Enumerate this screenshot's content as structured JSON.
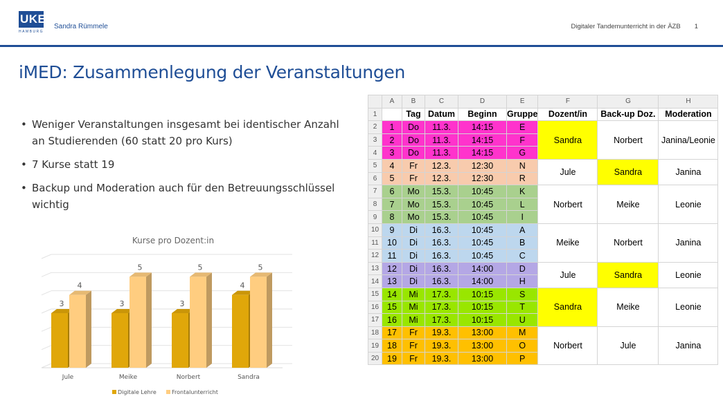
{
  "header": {
    "logo_text": "UKE",
    "logo_sub": "HAMBURG",
    "author": "Sandra Rümmele",
    "subtitle": "Digitaler Tandemunterricht in der ÄZB",
    "page_number": "1"
  },
  "title": "iMED: Zusammenlegung der Veranstaltungen",
  "bullets": [
    "Weniger Veranstaltungen insgesamt bei identischer Anzahl an Studierenden (60 statt 20 pro Kurs)",
    "7 Kurse statt 19",
    "Backup und Moderation auch für den Betreuungsschlüssel wichtig"
  ],
  "chart_data": {
    "type": "bar",
    "title": "Kurse pro Dozent:in",
    "categories": [
      "Jule",
      "Meike",
      "Norbert",
      "Sandra"
    ],
    "series": [
      {
        "name": "Digitale Lehre",
        "values": [
          3,
          3,
          3,
          4
        ],
        "color": "#e0a70a"
      },
      {
        "name": "Frontalunterricht",
        "values": [
          4,
          5,
          5,
          5
        ],
        "color": "#ffcd80"
      }
    ],
    "ylim": [
      0,
      6
    ],
    "grid": true,
    "legend": "bottom",
    "style": "3d-clustered"
  },
  "spreadsheet": {
    "column_letters": [
      "A",
      "B",
      "C",
      "D",
      "E",
      "F",
      "G",
      "H"
    ],
    "headers": [
      "",
      "Tag",
      "Datum",
      "Beginn",
      "Gruppe",
      "Dozent/in",
      "Back-up Doz.",
      "Moderation"
    ],
    "rows": [
      [
        "1",
        "Do",
        "11.3.",
        "14:15",
        "E"
      ],
      [
        "2",
        "Do",
        "11.3.",
        "14:15",
        "F"
      ],
      [
        "3",
        "Do",
        "11.3.",
        "14:15",
        "G"
      ],
      [
        "4",
        "Fr",
        "12.3.",
        "12:30",
        "N"
      ],
      [
        "5",
        "Fr",
        "12.3.",
        "12:30",
        "R"
      ],
      [
        "6",
        "Mo",
        "15.3.",
        "10:45",
        "K"
      ],
      [
        "7",
        "Mo",
        "15.3.",
        "10:45",
        "L"
      ],
      [
        "8",
        "Mo",
        "15.3.",
        "10:45",
        "I"
      ],
      [
        "9",
        "Di",
        "16.3.",
        "10:45",
        "A"
      ],
      [
        "10",
        "Di",
        "16.3.",
        "10:45",
        "B"
      ],
      [
        "11",
        "Di",
        "16.3.",
        "10:45",
        "C"
      ],
      [
        "12",
        "Di",
        "16.3.",
        "14:00",
        "D"
      ],
      [
        "13",
        "Di",
        "16.3.",
        "14:00",
        "H"
      ],
      [
        "14",
        "Mi",
        "17.3.",
        "10:15",
        "S"
      ],
      [
        "15",
        "Mi",
        "17.3.",
        "10:15",
        "T"
      ],
      [
        "16",
        "Mi",
        "17.3.",
        "10:15",
        "U"
      ],
      [
        "17",
        "Fr",
        "19.3.",
        "13:00",
        "M"
      ],
      [
        "18",
        "Fr",
        "19.3.",
        "13:00",
        "O"
      ],
      [
        "19",
        "Fr",
        "19.3.",
        "13:00",
        "P"
      ]
    ],
    "groups": [
      {
        "rows": [
          0,
          2
        ],
        "color": "#ff33cc",
        "dozent": "Sandra",
        "backup": "Norbert",
        "moderation": "Janina/Leonie",
        "highlight": "dozent"
      },
      {
        "rows": [
          3,
          4
        ],
        "color": "#f8cbad",
        "dozent": "Jule",
        "backup": "Sandra",
        "moderation": "Janina",
        "highlight": "backup"
      },
      {
        "rows": [
          5,
          7
        ],
        "color": "#a9d08e",
        "dozent": "Norbert",
        "backup": "Meike",
        "moderation": "Leonie",
        "highlight": ""
      },
      {
        "rows": [
          8,
          10
        ],
        "color": "#bdd7ee",
        "dozent": "Meike",
        "backup": "Norbert",
        "moderation": "Janina",
        "highlight": ""
      },
      {
        "rows": [
          11,
          12
        ],
        "color": "#b4a7e5",
        "dozent": "Jule",
        "backup": "Sandra",
        "moderation": "Leonie",
        "highlight": "backup"
      },
      {
        "rows": [
          13,
          15
        ],
        "color": "#99e600",
        "dozent": "Sandra",
        "backup": "Meike",
        "moderation": "Leonie",
        "highlight": "dozent"
      },
      {
        "rows": [
          16,
          18
        ],
        "color": "#ffc000",
        "dozent": "Norbert",
        "backup": "Jule",
        "moderation": "Janina",
        "highlight": ""
      }
    ],
    "highlight_color": "#ffff00"
  }
}
